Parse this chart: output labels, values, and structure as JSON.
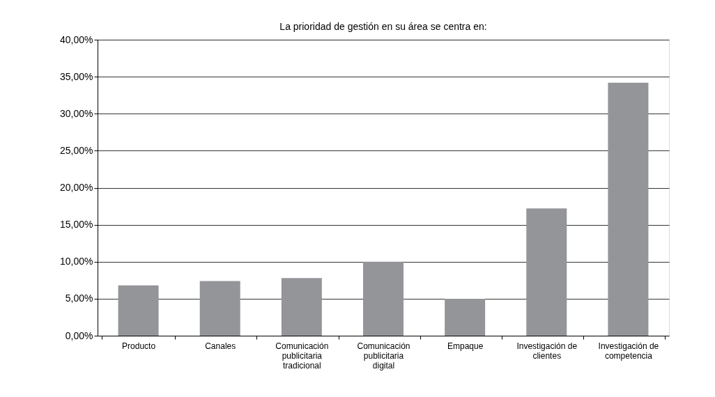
{
  "chart_data": {
    "type": "bar",
    "title": "La prioridad de gestión en su área se centra en:",
    "categories": [
      "Producto",
      "Canales",
      "Comunicación publicitaria tradicional",
      "Comunicación publicitaria digital",
      "Empaque",
      "Investigación de clientes",
      "Investigación de competencia"
    ],
    "values": [
      6.8,
      7.4,
      7.8,
      10.0,
      5.0,
      17.2,
      34.2
    ],
    "color": "#939598",
    "ylim": [
      0,
      40
    ],
    "yticks": [
      {
        "value": 0,
        "label": "0,00%"
      },
      {
        "value": 5,
        "label": "5,00%"
      },
      {
        "value": 10,
        "label": "10,00%"
      },
      {
        "value": 15,
        "label": "15,00%"
      },
      {
        "value": 20,
        "label": "20,00%"
      },
      {
        "value": 25,
        "label": "25,00%"
      },
      {
        "value": 30,
        "label": "30,00%"
      },
      {
        "value": 35,
        "label": "35,00%"
      },
      {
        "value": 40,
        "label": "40,00%"
      }
    ],
    "grid": "y"
  }
}
